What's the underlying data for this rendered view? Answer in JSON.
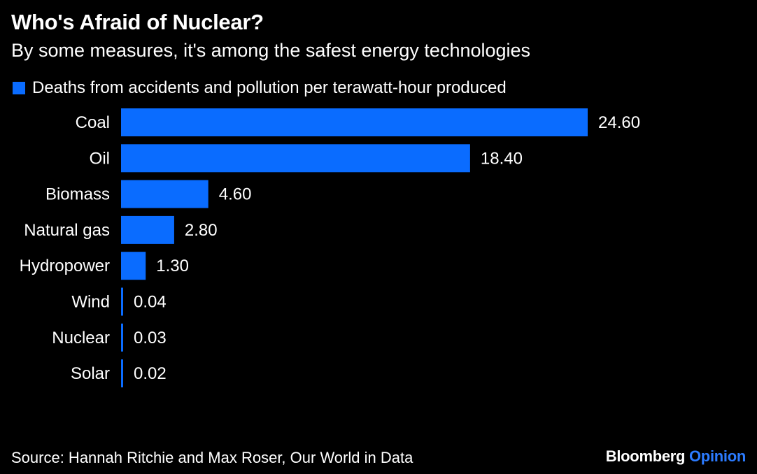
{
  "header": {
    "title": "Who's Afraid of Nuclear?",
    "subtitle": "By some measures, it's among the safest energy technologies"
  },
  "footer": {
    "source": "Source: Hannah Ritchie and Max Roser, Our World in Data",
    "brand_name": "Bloomberg",
    "brand_section": "Opinion"
  },
  "colors": {
    "background": "#000000",
    "bar": "#0a6cff",
    "text": "#ffffff",
    "brand_accent": "#2b7bff"
  },
  "chart_data": {
    "type": "bar",
    "orientation": "horizontal",
    "categories": [
      "Coal",
      "Oil",
      "Biomass",
      "Natural gas",
      "Hydropower",
      "Wind",
      "Nuclear",
      "Solar"
    ],
    "series": [
      {
        "name": "Deaths from accidents and pollution per terawatt-hour produced",
        "values": [
          24.6,
          18.4,
          4.6,
          2.8,
          1.3,
          0.04,
          0.03,
          0.02
        ]
      }
    ],
    "value_labels": [
      "24.60",
      "18.40",
      "4.60",
      "2.80",
      "1.30",
      "0.04",
      "0.03",
      "0.02"
    ],
    "xlim": [
      0,
      24.6
    ],
    "grid": false,
    "legend_position": "top-left"
  }
}
